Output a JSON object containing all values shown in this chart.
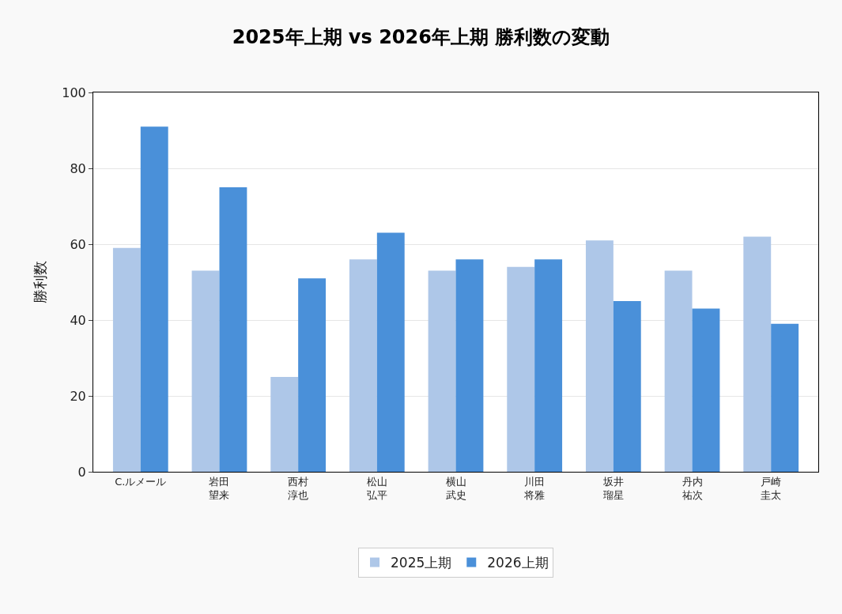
{
  "chart_data": {
    "type": "bar",
    "title": "2025年上期 vs 2026年上期 勝利数の変動",
    "ylabel": "勝利数",
    "categories": [
      "C.ルメール",
      "岩田望来",
      "西村淳也",
      "松山弘平",
      "横山武史",
      "川田将雅",
      "坂井瑠星",
      "丹内祐次",
      "戸崎圭太"
    ],
    "series": [
      {
        "name": "2025上期",
        "color": "#aec7e8",
        "values": [
          59,
          53,
          25,
          56,
          53,
          54,
          61,
          53,
          62
        ]
      },
      {
        "name": "2026上期",
        "color": "#4a90d9",
        "values": [
          91,
          75,
          51,
          63,
          56,
          56,
          45,
          43,
          39
        ]
      }
    ],
    "ylim": [
      0,
      100
    ],
    "yticks": [
      0,
      20,
      40,
      60,
      80,
      100
    ],
    "grid": "y",
    "legend": "bottom"
  }
}
